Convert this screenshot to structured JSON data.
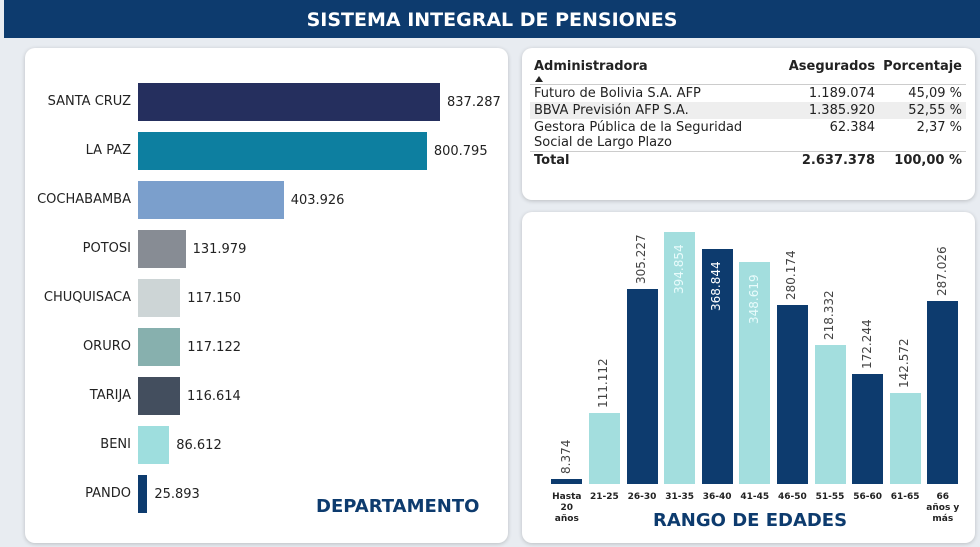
{
  "header": {
    "title": "SISTEMA INTEGRAL DE PENSIONES"
  },
  "chart_data": [
    {
      "type": "hbar",
      "title": "DEPARTAMENTO",
      "categories": [
        "SANTA CRUZ",
        "LA PAZ",
        "COCHABAMBA",
        "POTOSI",
        "CHUQUISACA",
        "ORURO",
        "TARIJA",
        "BENI",
        "PANDO"
      ],
      "values": [
        837287,
        800795,
        403926,
        131979,
        117150,
        117122,
        116614,
        86612,
        25893
      ],
      "value_labels": [
        "837.287",
        "800.795",
        "403.926",
        "131.979",
        "117.150",
        "117.122",
        "116.614",
        "86.612",
        "25.893"
      ],
      "colors": [
        "#252f5e",
        "#0d7fa0",
        "#7b9fcc",
        "#878c94",
        "#cdd5d6",
        "#87b0ae",
        "#434e5e",
        "#9edede",
        "#0d3b6e"
      ]
    },
    {
      "type": "bar",
      "title": "RANGO DE EDADES",
      "categories": [
        "Hasta 20 años",
        "21-25",
        "26-30",
        "31-35",
        "36-40",
        "41-45",
        "46-50",
        "51-55",
        "56-60",
        "61-65",
        "66 años y más"
      ],
      "values": [
        8374,
        111112,
        305227,
        394854,
        368844,
        348619,
        280174,
        218332,
        172244,
        142572,
        287026
      ],
      "value_labels": [
        "8.374",
        "111.112",
        "305.227",
        "394.854",
        "368.844",
        "348.619",
        "280.174",
        "218.332",
        "172.244",
        "142.572",
        "287.026"
      ],
      "colors": [
        "#0d3b6e",
        "#a3dede",
        "#0d3b6e",
        "#a3dede",
        "#0d3b6e",
        "#a3dede",
        "#0d3b6e",
        "#a3dede",
        "#0d3b6e",
        "#a3dede",
        "#0d3b6e"
      ]
    }
  ],
  "table": {
    "columns": [
      "Administradora",
      "Asegurados",
      "Porcentaje"
    ],
    "rows": [
      [
        "Futuro de Bolivia S.A. AFP",
        "1.189.074",
        "45,09 %"
      ],
      [
        "BBVA Previsión AFP S.A.",
        "1.385.920",
        "52,55 %"
      ],
      [
        "Gestora Pública de la Seguridad Social de Largo Plazo",
        "62.384",
        "2,37 %"
      ]
    ],
    "total": [
      "Total",
      "2.637.378",
      "100,00 %"
    ]
  }
}
